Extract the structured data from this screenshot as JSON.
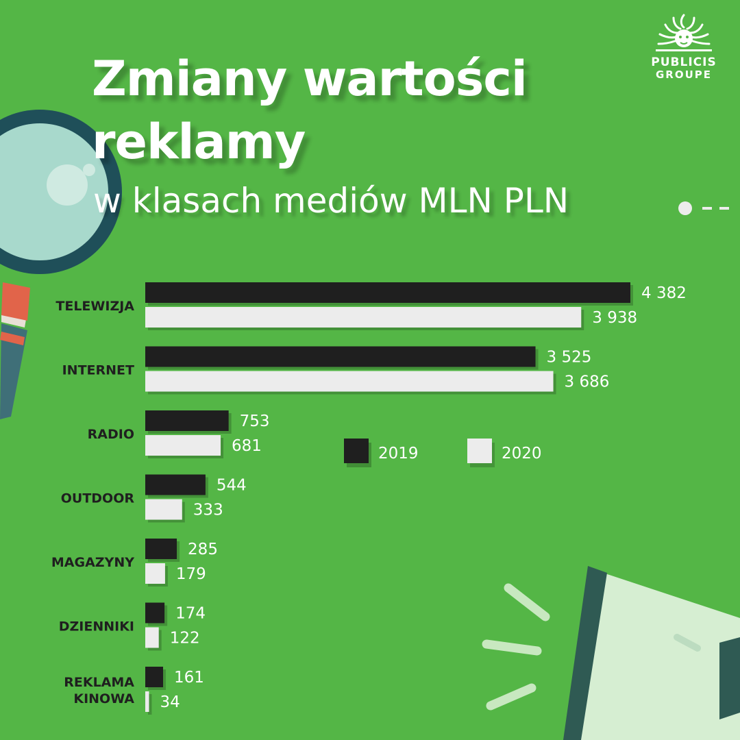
{
  "title": {
    "line1": "Zmiany wartości",
    "line2": "reklamy",
    "subtitle": "w klasach mediów MLN PLN"
  },
  "logo": {
    "line1": "PUBLICIS",
    "line2": "GROUPE"
  },
  "colors": {
    "background": "#54b646",
    "series_2019": "#1f1f1f",
    "series_2020": "#ececec",
    "text": "#ffffff",
    "category_label": "#1f1f1f"
  },
  "chart_data": {
    "type": "bar",
    "orientation": "horizontal",
    "categories": [
      [
        "TELEWIZJA"
      ],
      [
        "INTERNET"
      ],
      [
        "RADIO"
      ],
      [
        "OUTDOOR"
      ],
      [
        "MAGAZYNY"
      ],
      [
        "DZIENNIKI"
      ],
      [
        "REKLAMA",
        "KINOWA"
      ]
    ],
    "series": [
      {
        "name": "2019",
        "values": [
          4382,
          3525,
          753,
          544,
          285,
          174,
          161
        ],
        "labels": [
          "4 382",
          "3 525",
          "753",
          "544",
          "285",
          "174",
          "161"
        ]
      },
      {
        "name": "2020",
        "values": [
          3938,
          3686,
          681,
          333,
          179,
          122,
          34
        ],
        "labels": [
          "3 938",
          "3 686",
          "681",
          "333",
          "179",
          "122",
          "34"
        ]
      }
    ],
    "legend": {
      "position": "right-middle",
      "items": [
        "2019",
        "2020"
      ]
    },
    "grid": false
  }
}
